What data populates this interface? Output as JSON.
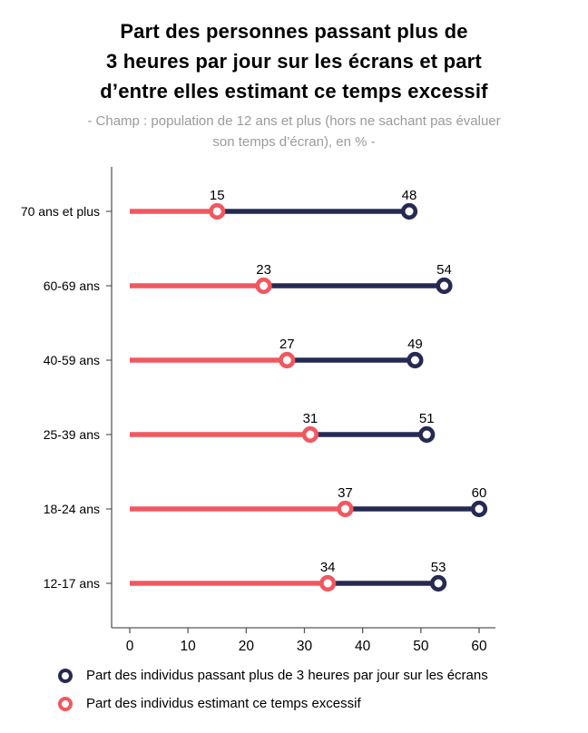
{
  "header": {
    "title_lines": [
      "Part des personnes passant plus de",
      "3 heures par jour sur les écrans et part",
      "d’entre elles estimant ce temps excessif"
    ],
    "subtitle_lines": [
      "- Champ : population de 12 ans et plus (hors ne sachant pas évaluer",
      "son temps d’écran), en % -"
    ]
  },
  "chart_data": {
    "type": "dumbbell",
    "orientation": "horizontal",
    "title": "Part des personnes passant plus de 3 heures par jour sur les écrans et part d’entre elles estimant ce temps excessif",
    "subtitle": "- Champ : population de 12 ans et plus (hors ne sachant pas évaluer son temps d’écran), en % -",
    "unit": "%",
    "categories": [
      "70 ans et plus",
      "60-69 ans",
      "40-59 ans",
      "25-39 ans",
      "18-24 ans",
      "12-17 ans"
    ],
    "series": [
      {
        "name": "Part des individus passant plus de 3 heures par jour sur les écrans",
        "color": "#262A52",
        "values": [
          48,
          54,
          49,
          51,
          60,
          53
        ]
      },
      {
        "name": "Part des individus estimant ce temps excessif",
        "color": "#F0585F",
        "values": [
          15,
          23,
          27,
          31,
          37,
          34
        ]
      }
    ],
    "xlim": [
      0,
      60
    ],
    "xticks": [
      0,
      10,
      20,
      30,
      40,
      50,
      60
    ],
    "grid": false,
    "legend_position": "bottom",
    "axis_color": "#595959",
    "text_color": "#000000",
    "marker_fill": "#ffffff"
  }
}
